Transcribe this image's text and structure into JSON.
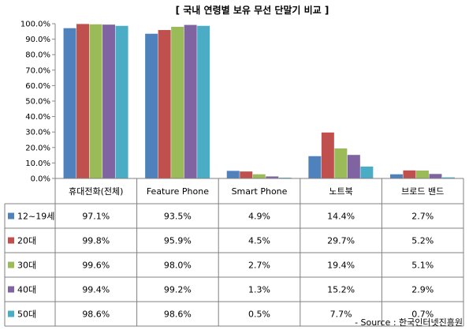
{
  "chart_data": {
    "type": "bar",
    "title": "[ 국내 연령별 보유 무선 단말기 비교 ]",
    "categories": [
      "휴대전화(전체)",
      "Feature Phone",
      "Smart Phone",
      "노트북",
      "브로드 밴드"
    ],
    "ylim": [
      0,
      100
    ],
    "yticks": [
      "0.0%",
      "10.0%",
      "20.0%",
      "30.0%",
      "40.0%",
      "50.0%",
      "60.0%",
      "70.0%",
      "80.0%",
      "90.0%",
      "100.0%"
    ],
    "grid": false,
    "legend": "table-left",
    "series": [
      {
        "name": "12~19세",
        "color": "#4F81BD",
        "values": [
          97.1,
          93.5,
          4.9,
          14.4,
          2.7
        ],
        "labels": [
          "97.1%",
          "93.5%",
          "4.9%",
          "14.4%",
          "2.7%"
        ]
      },
      {
        "name": "20대",
        "color": "#C0504D",
        "values": [
          99.8,
          95.9,
          4.5,
          29.7,
          5.2
        ],
        "labels": [
          "99.8%",
          "95.9%",
          "4.5%",
          "29.7%",
          "5.2%"
        ]
      },
      {
        "name": "30대",
        "color": "#9BBB59",
        "values": [
          99.6,
          98.0,
          2.7,
          19.4,
          5.1
        ],
        "labels": [
          "99.6%",
          "98.0%",
          "2.7%",
          "19.4%",
          "5.1%"
        ]
      },
      {
        "name": "40대",
        "color": "#8064A2",
        "values": [
          99.4,
          99.2,
          1.3,
          15.2,
          2.9
        ],
        "labels": [
          "99.4%",
          "99.2%",
          "1.3%",
          "15.2%",
          "2.9%"
        ]
      },
      {
        "name": "50대",
        "color": "#4BACC6",
        "values": [
          98.6,
          98.6,
          0.5,
          7.7,
          0.7
        ],
        "labels": [
          "98.6%",
          "98.6%",
          "0.5%",
          "7.7%",
          "0.7%"
        ]
      }
    ],
    "source": "- Source : 한국인터넷진흥원"
  }
}
